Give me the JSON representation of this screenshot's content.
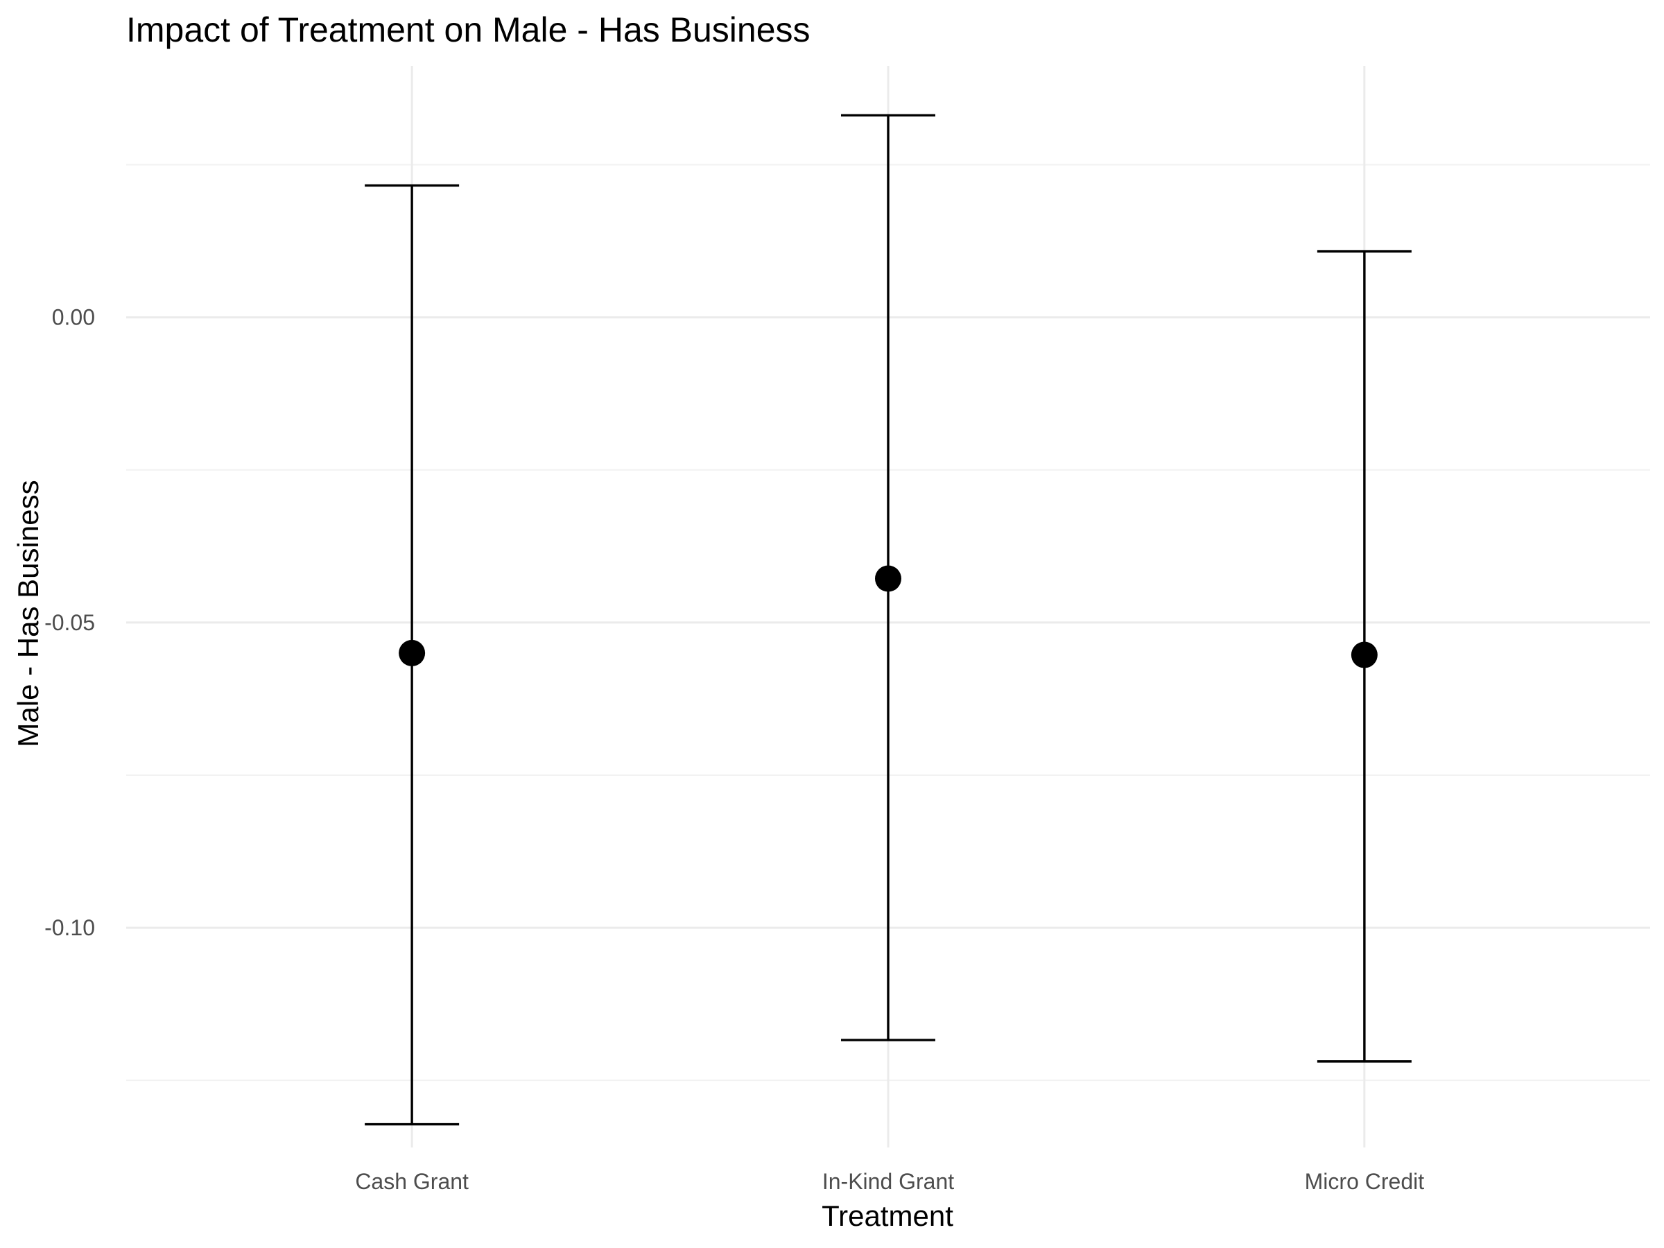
{
  "chart_data": {
    "type": "scatter",
    "title": "Impact of Treatment on Male - Has Business",
    "xlabel": "Treatment",
    "ylabel": "Male - Has Business",
    "categories": [
      "Cash Grant",
      "In-Kind Grant",
      "Micro Credit"
    ],
    "estimates": [
      -0.055,
      -0.0428,
      -0.0553
    ],
    "ci_lower": [
      -0.1322,
      -0.1184,
      -0.1219
    ],
    "ci_upper": [
      0.0216,
      0.0331,
      0.0108
    ],
    "y_ticks": [
      0.0,
      -0.05,
      -0.1
    ],
    "y_tick_labels": [
      "0.00",
      "-0.05",
      "-0.10"
    ],
    "ylim": [
      -0.136,
      0.0412
    ],
    "grid": true,
    "legend": "none",
    "colors": {
      "point": "#000000",
      "errorbar": "#000000",
      "grid": "#ebebeb",
      "tick_text": "#4d4d4d"
    }
  }
}
